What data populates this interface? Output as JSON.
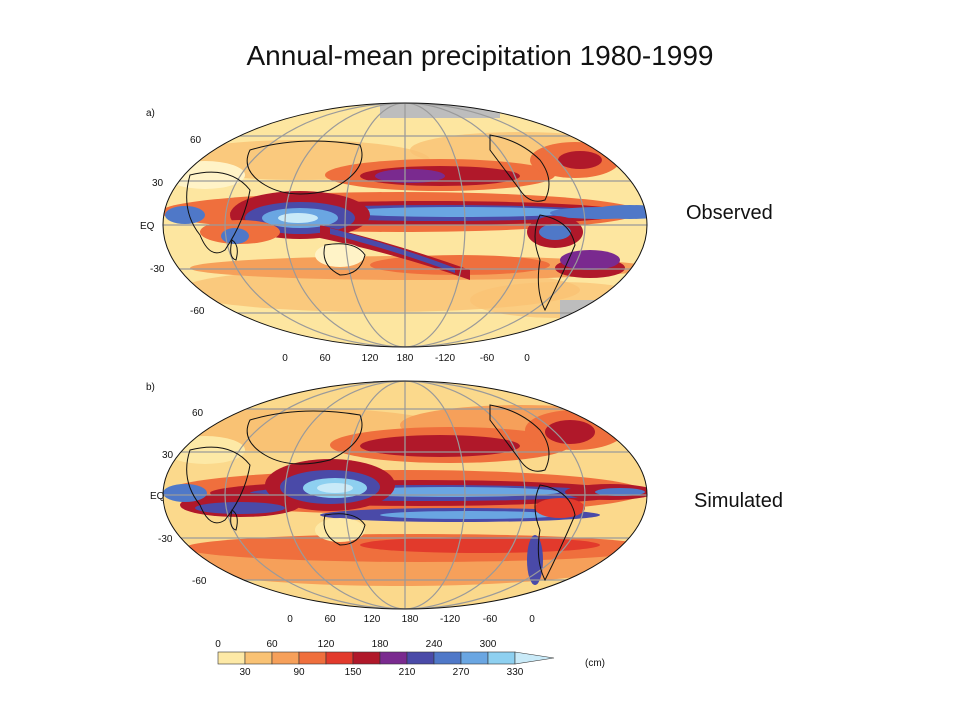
{
  "title": "Annual-mean precipitation 1980-1999",
  "panels": [
    {
      "id": "a",
      "letter": "a)",
      "label": "Observed",
      "lat_ticks": [
        "60",
        "30",
        "EQ",
        "-30",
        "-60"
      ],
      "lon_ticks": [
        "0",
        "60",
        "120",
        "180",
        "-120",
        "-60",
        "0"
      ]
    },
    {
      "id": "b",
      "letter": "b)",
      "label": "Simulated",
      "lat_ticks": [
        "60",
        "30",
        "EQ",
        "-30",
        "-60"
      ],
      "lon_ticks": [
        "0",
        "60",
        "120",
        "180",
        "-120",
        "-60",
        "0"
      ]
    }
  ],
  "colorbar": {
    "unit": "(cm)",
    "top_labels": [
      "0",
      "60",
      "120",
      "180",
      "240",
      "300"
    ],
    "bottom_labels": [
      "30",
      "90",
      "150",
      "210",
      "270",
      "330"
    ],
    "colors": [
      "#fde9a6",
      "#f9c274",
      "#f6a05a",
      "#ef6f3d",
      "#e23a2c",
      "#b0182a",
      "#7a2a8f",
      "#4a4aa8",
      "#4f78c8",
      "#6aa6e2",
      "#8ed0f0",
      "#c9eaf8"
    ]
  }
}
